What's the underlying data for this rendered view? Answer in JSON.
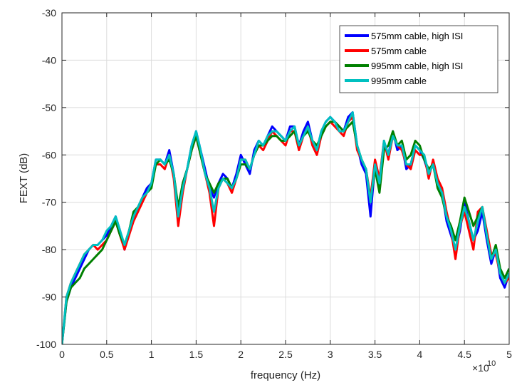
{
  "chart_data": {
    "type": "line",
    "xlabel": "frequency (Hz)",
    "ylabel": "FEXT (dB)",
    "x_exponent_label": "×10",
    "x_exponent": "10",
    "xlim": [
      0,
      5
    ],
    "ylim": [
      -100,
      -30
    ],
    "x_ticks": [
      "0",
      "0.5",
      "1",
      "1.5",
      "2",
      "2.5",
      "3",
      "3.5",
      "4",
      "4.5",
      "5"
    ],
    "y_ticks": [
      "-30",
      "-40",
      "-50",
      "-60",
      "-70",
      "-80",
      "-90",
      "-100"
    ],
    "grid": true,
    "legend_position": "top-right",
    "x": [
      0,
      0.05,
      0.1,
      0.15,
      0.2,
      0.25,
      0.3,
      0.35,
      0.4,
      0.45,
      0.5,
      0.55,
      0.6,
      0.65,
      0.7,
      0.75,
      0.8,
      0.85,
      0.9,
      0.95,
      1.0,
      1.05,
      1.1,
      1.15,
      1.2,
      1.25,
      1.3,
      1.35,
      1.4,
      1.45,
      1.5,
      1.55,
      1.6,
      1.65,
      1.7,
      1.75,
      1.8,
      1.85,
      1.9,
      1.95,
      2.0,
      2.05,
      2.1,
      2.15,
      2.2,
      2.25,
      2.3,
      2.35,
      2.4,
      2.45,
      2.5,
      2.55,
      2.6,
      2.65,
      2.7,
      2.75,
      2.8,
      2.85,
      2.9,
      2.95,
      3.0,
      3.05,
      3.1,
      3.15,
      3.2,
      3.25,
      3.3,
      3.35,
      3.4,
      3.45,
      3.5,
      3.55,
      3.6,
      3.65,
      3.7,
      3.75,
      3.8,
      3.85,
      3.9,
      3.95,
      4.0,
      4.05,
      4.1,
      4.15,
      4.2,
      4.25,
      4.3,
      4.35,
      4.4,
      4.45,
      4.5,
      4.55,
      4.6,
      4.65,
      4.7,
      4.75,
      4.8,
      4.85,
      4.9,
      4.95,
      5.0
    ],
    "series": [
      {
        "name": "575mm cable, high ISI",
        "color": "#0000ff",
        "values": [
          -100,
          -91,
          -88,
          -86,
          -84,
          -82,
          -80,
          -79,
          -79,
          -78,
          -77,
          -75,
          -73,
          -76,
          -80,
          -76,
          -73,
          -71,
          -69,
          -67,
          -66,
          -61,
          -61,
          -62,
          -59,
          -64,
          -72,
          -66,
          -63,
          -58,
          -55,
          -59,
          -63,
          -67,
          -69,
          -66,
          -64,
          -65,
          -67,
          -64,
          -60,
          -62,
          -64,
          -59,
          -57,
          -58,
          -56,
          -54,
          -55,
          -56,
          -57,
          -54,
          -54,
          -58,
          -55,
          -53,
          -57,
          -59,
          -55,
          -53,
          -52,
          -53,
          -54,
          -55,
          -52,
          -51,
          -58,
          -62,
          -64,
          -73,
          -62,
          -67,
          -58,
          -60,
          -55,
          -59,
          -58,
          -63,
          -62,
          -58,
          -59,
          -61,
          -64,
          -62,
          -66,
          -68,
          -74,
          -77,
          -80,
          -76,
          -70,
          -74,
          -78,
          -76,
          -72,
          -78,
          -83,
          -80,
          -86,
          -88,
          -85
        ]
      },
      {
        "name": "575mm cable",
        "color": "#ff0000",
        "values": [
          -100,
          -90,
          -87,
          -85,
          -83,
          -81,
          -80,
          -79,
          -80,
          -79,
          -78,
          -76,
          -74,
          -77,
          -80,
          -77,
          -74,
          -72,
          -70,
          -68,
          -66,
          -62,
          -62,
          -63,
          -60,
          -65,
          -75,
          -68,
          -63,
          -59,
          -56,
          -60,
          -64,
          -68,
          -75,
          -67,
          -65,
          -66,
          -68,
          -65,
          -61,
          -61,
          -63,
          -60,
          -58,
          -59,
          -57,
          -55,
          -56,
          -57,
          -58,
          -55,
          -55,
          -59,
          -56,
          -54,
          -58,
          -60,
          -56,
          -54,
          -53,
          -54,
          -55,
          -56,
          -53,
          -52,
          -59,
          -61,
          -63,
          -69,
          -61,
          -65,
          -57,
          -61,
          -56,
          -58,
          -59,
          -62,
          -63,
          -59,
          -60,
          -60,
          -65,
          -61,
          -65,
          -67,
          -72,
          -76,
          -82,
          -75,
          -72,
          -76,
          -80,
          -72,
          -71,
          -76,
          -81,
          -81,
          -85,
          -87,
          -86
        ]
      },
      {
        "name": "995mm cable, high ISI",
        "color": "#008000",
        "values": [
          -100,
          -91,
          -88,
          -87,
          -86,
          -84,
          -83,
          -82,
          -81,
          -80,
          -78,
          -76,
          -74,
          -77,
          -79,
          -76,
          -72,
          -71,
          -69,
          -68,
          -67,
          -62,
          -61,
          -62,
          -61,
          -64,
          -71,
          -66,
          -63,
          -59,
          -56,
          -60,
          -64,
          -66,
          -68,
          -66,
          -65,
          -65,
          -67,
          -65,
          -62,
          -62,
          -63,
          -60,
          -58,
          -58,
          -57,
          -56,
          -56,
          -57,
          -57,
          -56,
          -55,
          -58,
          -56,
          -55,
          -57,
          -58,
          -56,
          -54,
          -53,
          -53,
          -54,
          -55,
          -54,
          -53,
          -58,
          -61,
          -63,
          -70,
          -63,
          -68,
          -59,
          -58,
          -55,
          -58,
          -57,
          -61,
          -60,
          -57,
          -58,
          -61,
          -63,
          -62,
          -67,
          -69,
          -73,
          -75,
          -78,
          -74,
          -69,
          -72,
          -75,
          -73,
          -71,
          -77,
          -82,
          -79,
          -84,
          -86,
          -84
        ]
      },
      {
        "name": "995mm cable",
        "color": "#00c0c0",
        "values": [
          -100,
          -90,
          -87,
          -85,
          -83,
          -81,
          -80,
          -79,
          -79,
          -78,
          -76,
          -75,
          -73,
          -76,
          -79,
          -76,
          -73,
          -71,
          -69,
          -68,
          -66,
          -61,
          -61,
          -62,
          -60,
          -64,
          -73,
          -67,
          -63,
          -58,
          -55,
          -59,
          -64,
          -67,
          -72,
          -67,
          -65,
          -66,
          -67,
          -65,
          -61,
          -61,
          -63,
          -60,
          -57,
          -58,
          -56,
          -55,
          -55,
          -56,
          -57,
          -55,
          -54,
          -58,
          -56,
          -54,
          -57,
          -59,
          -55,
          -53,
          -52,
          -53,
          -55,
          -55,
          -53,
          -51,
          -58,
          -61,
          -63,
          -70,
          -62,
          -66,
          -57,
          -60,
          -56,
          -58,
          -58,
          -62,
          -62,
          -58,
          -59,
          -60,
          -64,
          -62,
          -66,
          -68,
          -73,
          -76,
          -80,
          -75,
          -71,
          -74,
          -78,
          -74,
          -71,
          -77,
          -82,
          -80,
          -85,
          -87,
          -85
        ]
      }
    ]
  }
}
